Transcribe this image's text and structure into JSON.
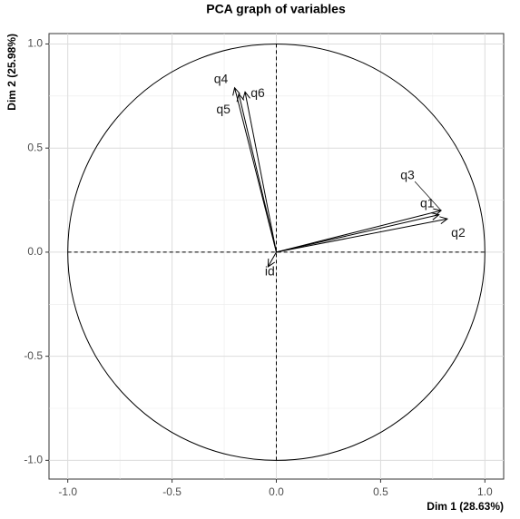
{
  "chart_data": {
    "type": "arrows",
    "title": "PCA graph of variables",
    "x_label": "Dim 1 (28.63%)",
    "y_label": "Dim 2 (25.98%)",
    "labels": [
      "q4",
      "q5",
      "q6",
      "q3",
      "q1",
      "q2",
      "id"
    ],
    "x": [
      -0.2,
      -0.18,
      -0.15,
      0.79,
      0.78,
      0.82,
      -0.04
    ],
    "values": [
      0.79,
      0.76,
      0.77,
      0.2,
      0.18,
      0.16,
      -0.07
    ],
    "color": "#000000",
    "xlim": [
      -1.09,
      1.09
    ],
    "ylim": [
      -1.09,
      1.05
    ],
    "xticks": [
      {
        "value": -1,
        "label": "-1.0"
      },
      -0.5,
      {
        "value": 0,
        "label": "0.0"
      },
      0.5,
      {
        "value": 1,
        "label": "1.0"
      }
    ],
    "yticks": [
      {
        "value": -1,
        "label": "-1.0"
      },
      -0.5,
      {
        "value": 0,
        "label": "0.0"
      },
      0.5,
      {
        "value": 1,
        "label": "1.0"
      }
    ],
    "grid": true
  }
}
